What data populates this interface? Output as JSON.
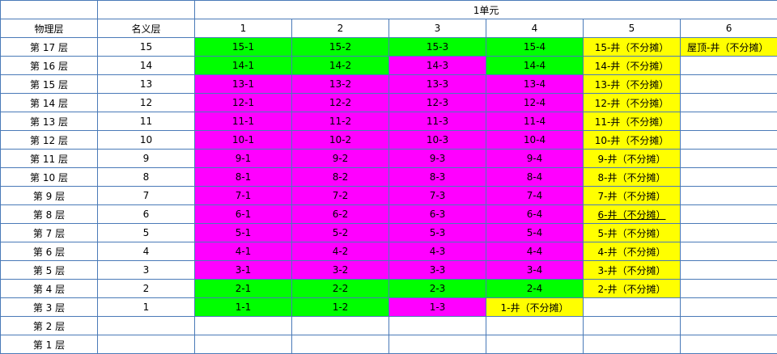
{
  "header": {
    "unit_title": "1单元",
    "physical_floor_label": "物理层",
    "nominal_floor_label": "名义层",
    "columns": [
      "1",
      "2",
      "3",
      "4",
      "5",
      "6"
    ]
  },
  "colors": {
    "green": "#00ff00",
    "magenta": "#ff00ff",
    "yellow": "#ffff00",
    "white": "#ffffff",
    "border": "#4a7ab8"
  },
  "rows": [
    {
      "physical": "第 17 层",
      "nominal": "15",
      "cells": [
        {
          "text": "15-1",
          "color": "green"
        },
        {
          "text": "15-2",
          "color": "green"
        },
        {
          "text": "15-3",
          "color": "green"
        },
        {
          "text": "15-4",
          "color": "green"
        },
        {
          "text": "15-井（不分摊）",
          "color": "yellow"
        },
        {
          "text": "屋顶-井（不分摊）",
          "color": "yellow",
          "align": "left"
        }
      ]
    },
    {
      "physical": "第 16 层",
      "nominal": "14",
      "cells": [
        {
          "text": "14-1",
          "color": "green"
        },
        {
          "text": "14-2",
          "color": "green"
        },
        {
          "text": "14-3",
          "color": "magenta"
        },
        {
          "text": "14-4",
          "color": "green"
        },
        {
          "text": "14-井（不分摊）",
          "color": "yellow"
        },
        {
          "text": "",
          "color": "white"
        }
      ]
    },
    {
      "physical": "第 15 层",
      "nominal": "13",
      "cells": [
        {
          "text": "13-1",
          "color": "magenta"
        },
        {
          "text": "13-2",
          "color": "magenta"
        },
        {
          "text": "13-3",
          "color": "magenta"
        },
        {
          "text": "13-4",
          "color": "magenta"
        },
        {
          "text": "13-井（不分摊）",
          "color": "yellow"
        },
        {
          "text": "",
          "color": "white"
        }
      ]
    },
    {
      "physical": "第 14 层",
      "nominal": "12",
      "cells": [
        {
          "text": "12-1",
          "color": "magenta"
        },
        {
          "text": "12-2",
          "color": "magenta"
        },
        {
          "text": "12-3",
          "color": "magenta"
        },
        {
          "text": "12-4",
          "color": "magenta"
        },
        {
          "text": "12-井（不分摊）",
          "color": "yellow"
        },
        {
          "text": "",
          "color": "white"
        }
      ]
    },
    {
      "physical": "第 13 层",
      "nominal": "11",
      "cells": [
        {
          "text": "11-1",
          "color": "magenta"
        },
        {
          "text": "11-2",
          "color": "magenta"
        },
        {
          "text": "11-3",
          "color": "magenta"
        },
        {
          "text": "11-4",
          "color": "magenta"
        },
        {
          "text": "11-井（不分摊）",
          "color": "yellow"
        },
        {
          "text": "",
          "color": "white"
        }
      ]
    },
    {
      "physical": "第 12 层",
      "nominal": "10",
      "cells": [
        {
          "text": "10-1",
          "color": "magenta"
        },
        {
          "text": "10-2",
          "color": "magenta"
        },
        {
          "text": "10-3",
          "color": "magenta"
        },
        {
          "text": "10-4",
          "color": "magenta"
        },
        {
          "text": "10-井（不分摊）",
          "color": "yellow"
        },
        {
          "text": "",
          "color": "white"
        }
      ]
    },
    {
      "physical": "第 11 层",
      "nominal": "9",
      "cells": [
        {
          "text": "9-1",
          "color": "magenta"
        },
        {
          "text": "9-2",
          "color": "magenta"
        },
        {
          "text": "9-3",
          "color": "magenta"
        },
        {
          "text": "9-4",
          "color": "magenta"
        },
        {
          "text": "9-井（不分摊）",
          "color": "yellow"
        },
        {
          "text": "",
          "color": "white"
        }
      ]
    },
    {
      "physical": "第 10 层",
      "nominal": "8",
      "cells": [
        {
          "text": "8-1",
          "color": "magenta"
        },
        {
          "text": "8-2",
          "color": "magenta"
        },
        {
          "text": "8-3",
          "color": "magenta"
        },
        {
          "text": "8-4",
          "color": "magenta"
        },
        {
          "text": "8-井（不分摊）",
          "color": "yellow"
        },
        {
          "text": "",
          "color": "white"
        }
      ]
    },
    {
      "physical": "第 9 层",
      "nominal": "7",
      "cells": [
        {
          "text": "7-1",
          "color": "magenta"
        },
        {
          "text": "7-2",
          "color": "magenta"
        },
        {
          "text": "7-3",
          "color": "magenta"
        },
        {
          "text": "7-4",
          "color": "magenta"
        },
        {
          "text": "7-井（不分摊）",
          "color": "yellow"
        },
        {
          "text": "",
          "color": "white"
        }
      ]
    },
    {
      "physical": "第 8 层",
      "nominal": "6",
      "cells": [
        {
          "text": "6-1",
          "color": "magenta"
        },
        {
          "text": "6-2",
          "color": "magenta"
        },
        {
          "text": "6-3",
          "color": "magenta"
        },
        {
          "text": "6-4",
          "color": "magenta"
        },
        {
          "text": "6-井（不分摊）",
          "color": "yellow",
          "underline": true
        },
        {
          "text": "",
          "color": "white"
        }
      ]
    },
    {
      "physical": "第 7 层",
      "nominal": "5",
      "cells": [
        {
          "text": "5-1",
          "color": "magenta"
        },
        {
          "text": "5-2",
          "color": "magenta"
        },
        {
          "text": "5-3",
          "color": "magenta"
        },
        {
          "text": "5-4",
          "color": "magenta"
        },
        {
          "text": "5-井（不分摊）",
          "color": "yellow"
        },
        {
          "text": "",
          "color": "white"
        }
      ]
    },
    {
      "physical": "第 6 层",
      "nominal": "4",
      "cells": [
        {
          "text": "4-1",
          "color": "magenta"
        },
        {
          "text": "4-2",
          "color": "magenta"
        },
        {
          "text": "4-3",
          "color": "magenta"
        },
        {
          "text": "4-4",
          "color": "magenta"
        },
        {
          "text": "4-井（不分摊）",
          "color": "yellow"
        },
        {
          "text": "",
          "color": "white"
        }
      ]
    },
    {
      "physical": "第 5 层",
      "nominal": "3",
      "cells": [
        {
          "text": "3-1",
          "color": "magenta"
        },
        {
          "text": "3-2",
          "color": "magenta"
        },
        {
          "text": "3-3",
          "color": "magenta"
        },
        {
          "text": "3-4",
          "color": "magenta"
        },
        {
          "text": "3-井（不分摊）",
          "color": "yellow"
        },
        {
          "text": "",
          "color": "white"
        }
      ]
    },
    {
      "physical": "第 4 层",
      "nominal": "2",
      "cells": [
        {
          "text": "2-1",
          "color": "green"
        },
        {
          "text": "2-2",
          "color": "green"
        },
        {
          "text": "2-3",
          "color": "green"
        },
        {
          "text": "2-4",
          "color": "green"
        },
        {
          "text": "2-井（不分摊）",
          "color": "yellow"
        },
        {
          "text": "",
          "color": "white"
        }
      ]
    },
    {
      "physical": "第 3 层",
      "nominal": "1",
      "cells": [
        {
          "text": "1-1",
          "color": "green"
        },
        {
          "text": "1-2",
          "color": "green"
        },
        {
          "text": "1-3",
          "color": "magenta"
        },
        {
          "text": "1-井（不分摊）",
          "color": "yellow"
        },
        {
          "text": "",
          "color": "white"
        },
        {
          "text": "",
          "color": "white"
        }
      ]
    },
    {
      "physical": "第 2 层",
      "nominal": "",
      "cells": [
        {
          "text": "",
          "color": "white"
        },
        {
          "text": "",
          "color": "white"
        },
        {
          "text": "",
          "color": "white"
        },
        {
          "text": "",
          "color": "white"
        },
        {
          "text": "",
          "color": "white"
        },
        {
          "text": "",
          "color": "white"
        }
      ]
    },
    {
      "physical": "第 1 层",
      "nominal": "",
      "cells": [
        {
          "text": "",
          "color": "white"
        },
        {
          "text": "",
          "color": "white"
        },
        {
          "text": "",
          "color": "white"
        },
        {
          "text": "",
          "color": "white"
        },
        {
          "text": "",
          "color": "white"
        },
        {
          "text": "",
          "color": "white"
        }
      ]
    }
  ]
}
